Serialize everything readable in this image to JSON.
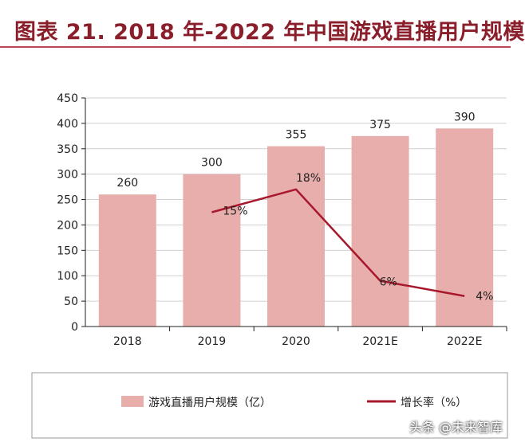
{
  "title": "图表 21. 2018 年-2022 年中国游戏直播用户规模",
  "watermark": "头条 @未来智库",
  "colors": {
    "bar": "#e8aeab",
    "line": "#a8182c",
    "title": "#8a1e2b",
    "grid": "#d0d0d0"
  },
  "chart_data": {
    "type": "bar",
    "categories": [
      "2018",
      "2019",
      "2020",
      "2021E",
      "2022E"
    ],
    "ylim": [
      0,
      450
    ],
    "yticks": [
      0,
      50,
      100,
      150,
      200,
      250,
      300,
      350,
      400,
      450
    ],
    "grid": true,
    "legend_position": "bottom",
    "series": [
      {
        "name": "游戏直播用户规模（亿）",
        "type": "bar",
        "values": [
          260,
          300,
          355,
          375,
          390
        ],
        "labels": [
          "260",
          "300",
          "355",
          "375",
          "390"
        ]
      },
      {
        "name": "增长率（%）",
        "type": "line",
        "values": [
          null,
          15,
          18,
          6,
          4
        ],
        "labels": [
          "",
          "15%",
          "18%",
          "6%",
          "4%"
        ]
      }
    ]
  }
}
